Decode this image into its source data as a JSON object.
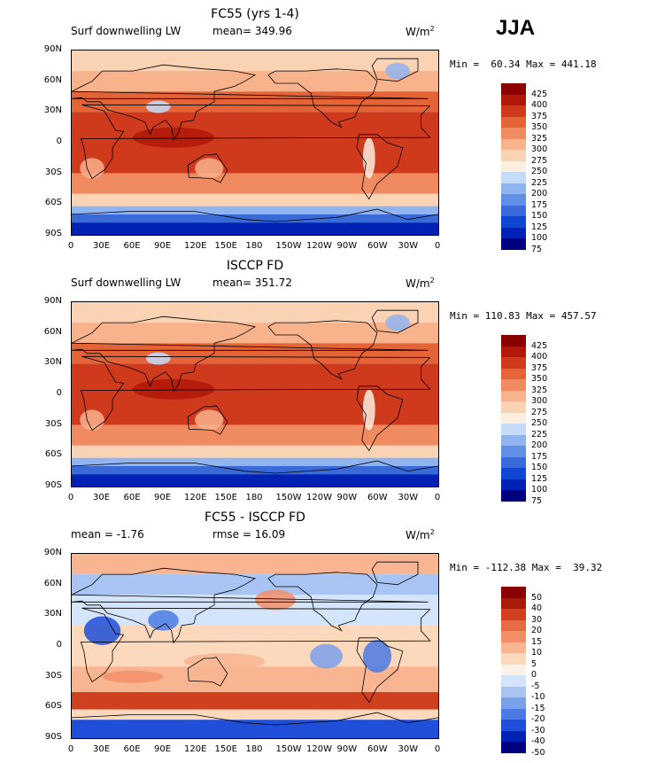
{
  "season": "JJA",
  "x_ticks": [
    "0",
    "30E",
    "60E",
    "90E",
    "120E",
    "150E",
    "180",
    "150W",
    "120W",
    "90W",
    "60W",
    "30W",
    "0"
  ],
  "y_ticks": [
    "90N",
    "60N",
    "30N",
    "0",
    "30S",
    "60S",
    "90S"
  ],
  "colors": {
    "abs": [
      "#00007f",
      "#0022b4",
      "#0f46d2",
      "#3a6ad8",
      "#6090e6",
      "#90b4f0",
      "#c4dcfa",
      "#fcefe0",
      "#fad2b4",
      "#f8b28c",
      "#f08a60",
      "#e46438",
      "#cf3a1c",
      "#b01808",
      "#8a0000"
    ],
    "diff": [
      "#00007f",
      "#0022b4",
      "#1f4fd8",
      "#4a7ae2",
      "#7ba0ea",
      "#a9c4f2",
      "#d4e4fa",
      "#fbf1e6",
      "#fcd8bd",
      "#f9b592",
      "#f28f69",
      "#e66a42",
      "#d03f1e",
      "#a91a08",
      "#8a0000"
    ]
  },
  "panels": [
    {
      "title": "FC55 (yrs 1-4)",
      "subtitle_left": "Surf downwelling LW",
      "subtitle_center": "mean= 349.96",
      "units_base": "W/m",
      "units_sup": "2",
      "minmax": "Min =  60.34 Max = 441.18",
      "colorbar_labels": [
        "425",
        "400",
        "375",
        "350",
        "325",
        "300",
        "275",
        "250",
        "225",
        "200",
        "175",
        "150",
        "125",
        "100",
        "75"
      ]
    },
    {
      "title": "ISCCP FD",
      "subtitle_left": "Surf downwelling LW",
      "subtitle_center": "mean= 351.72",
      "units_base": "W/m",
      "units_sup": "2",
      "minmax": "Min = 110.83 Max = 457.57",
      "colorbar_labels": [
        "425",
        "400",
        "375",
        "350",
        "325",
        "300",
        "275",
        "250",
        "225",
        "200",
        "175",
        "150",
        "125",
        "100",
        "75"
      ]
    },
    {
      "title": "FC55 - ISCCP FD",
      "subtitle_left": "mean =  -1.76",
      "subtitle_center": "rmse =  16.09",
      "units_base": "W/m",
      "units_sup": "2",
      "minmax": "Min = -112.38 Max =  39.32",
      "colorbar_labels": [
        "50",
        "40",
        "30",
        "20",
        "15",
        "10",
        "5",
        "0",
        "-5",
        "-10",
        "-15",
        "-20",
        "-30",
        "-40",
        "-50"
      ]
    }
  ],
  "chart_data": [
    {
      "type": "heatmap",
      "title": "FC55 (yrs 1-4)",
      "variable": "Surf downwelling LW",
      "units": "W/m2",
      "mean": 349.96,
      "min": 60.34,
      "max": 441.18,
      "x_ticks": [
        "0",
        "30E",
        "60E",
        "90E",
        "120E",
        "150E",
        "180",
        "150W",
        "120W",
        "90W",
        "60W",
        "30W",
        "0"
      ],
      "y_ticks": [
        "90N",
        "60N",
        "30N",
        "0",
        "30S",
        "60S",
        "90S"
      ],
      "levels": [
        75,
        100,
        125,
        150,
        175,
        200,
        225,
        250,
        275,
        300,
        325,
        350,
        375,
        400,
        425
      ]
    },
    {
      "type": "heatmap",
      "title": "ISCCP FD",
      "variable": "Surf downwelling LW",
      "units": "W/m2",
      "mean": 351.72,
      "min": 110.83,
      "max": 457.57,
      "x_ticks": [
        "0",
        "30E",
        "60E",
        "90E",
        "120E",
        "150E",
        "180",
        "150W",
        "120W",
        "90W",
        "60W",
        "30W",
        "0"
      ],
      "y_ticks": [
        "90N",
        "60N",
        "30N",
        "0",
        "30S",
        "60S",
        "90S"
      ],
      "levels": [
        75,
        100,
        125,
        150,
        175,
        200,
        225,
        250,
        275,
        300,
        325,
        350,
        375,
        400,
        425
      ]
    },
    {
      "type": "heatmap",
      "title": "FC55 - ISCCP FD",
      "units": "W/m2",
      "mean": -1.76,
      "rmse": 16.09,
      "min": -112.38,
      "max": 39.32,
      "x_ticks": [
        "0",
        "30E",
        "60E",
        "90E",
        "120E",
        "150E",
        "180",
        "150W",
        "120W",
        "90W",
        "60W",
        "30W",
        "0"
      ],
      "y_ticks": [
        "90N",
        "60N",
        "30N",
        "0",
        "30S",
        "60S",
        "90S"
      ],
      "levels": [
        -50,
        -40,
        -30,
        -20,
        -15,
        -10,
        -5,
        0,
        5,
        10,
        15,
        20,
        30,
        40,
        50
      ]
    }
  ]
}
